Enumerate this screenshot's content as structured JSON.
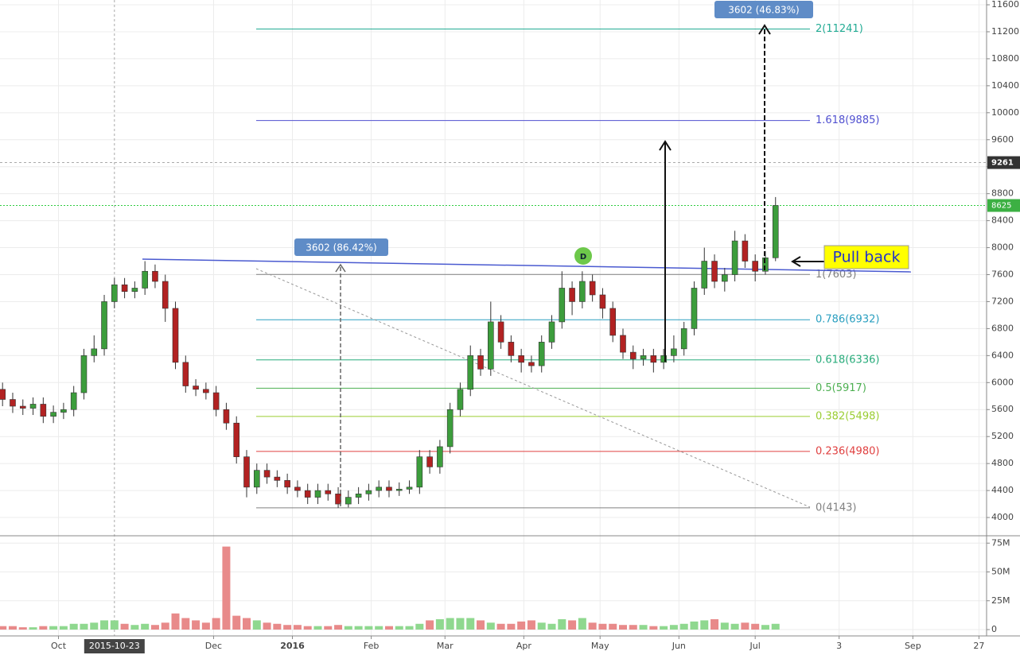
{
  "chart_data": {
    "type": "candlestick",
    "x": [
      -22,
      -18,
      -14,
      -10,
      -6,
      -2,
      2,
      6,
      10,
      14,
      18,
      22,
      26,
      30,
      34,
      38,
      42,
      46,
      50,
      54,
      58,
      62,
      66,
      70,
      74,
      78,
      82,
      86,
      90,
      94,
      98,
      102,
      106,
      110,
      114,
      118,
      122,
      126,
      130,
      134,
      138,
      142,
      146,
      150,
      154,
      158,
      162,
      166,
      170,
      174,
      178,
      182,
      186,
      190,
      194,
      198,
      202,
      206,
      210,
      214,
      218,
      222,
      226,
      230,
      234,
      238,
      242,
      246,
      250,
      254,
      258,
      262,
      266,
      270,
      274,
      278,
      282
    ],
    "open": [
      5900,
      5750,
      5650,
      5620,
      5680,
      5500,
      5560,
      5600,
      5850,
      6400,
      6500,
      7200,
      7450,
      7350,
      7400,
      7650,
      7500,
      7100,
      6300,
      5950,
      5900,
      5850,
      5600,
      5400,
      4900,
      4450,
      4700,
      4600,
      4550,
      4450,
      4400,
      4300,
      4400,
      4350,
      4200,
      4300,
      4350,
      4400,
      4450,
      4400,
      4420,
      4450,
      4900,
      4750,
      5050,
      5600,
      5900,
      6400,
      6200,
      6900,
      6600,
      6400,
      6300,
      6250,
      6600,
      6900,
      7400,
      7200,
      7500,
      7300,
      7100,
      6700,
      6450,
      6350,
      6400,
      6300,
      6400,
      6500,
      6800,
      7400,
      7800,
      7500,
      7600,
      8100,
      7800,
      7650,
      7850
    ],
    "high": [
      6000,
      5850,
      5750,
      5780,
      5780,
      5660,
      5700,
      5950,
      6500,
      6700,
      7300,
      7550,
      7550,
      7500,
      7800,
      7750,
      7600,
      7200,
      6400,
      6050,
      6000,
      5950,
      5700,
      5500,
      5000,
      4800,
      4800,
      4700,
      4650,
      4550,
      4500,
      4500,
      4500,
      4450,
      4400,
      4450,
      4500,
      4550,
      4550,
      4520,
      4550,
      5000,
      5000,
      5150,
      5700,
      6000,
      6550,
      6500,
      7200,
      7000,
      6700,
      6500,
      6400,
      6700,
      7000,
      7650,
      7500,
      7650,
      7600,
      7400,
      7200,
      6800,
      6550,
      6500,
      6500,
      6500,
      6700,
      6900,
      7500,
      8000,
      7900,
      7700,
      8250,
      8200,
      7900,
      7950,
      8750
    ],
    "low": [
      5650,
      5550,
      5520,
      5520,
      5400,
      5400,
      5460,
      5500,
      5750,
      6300,
      6400,
      7100,
      7250,
      7250,
      7300,
      7400,
      6900,
      6200,
      5850,
      5800,
      5750,
      5500,
      5300,
      4800,
      4300,
      4350,
      4500,
      4450,
      4350,
      4300,
      4200,
      4200,
      4250,
      4143,
      4150,
      4200,
      4250,
      4300,
      4300,
      4320,
      4350,
      4350,
      4650,
      4650,
      4950,
      5500,
      5800,
      6100,
      6100,
      6500,
      6300,
      6150,
      6150,
      6150,
      6500,
      6800,
      7000,
      7100,
      7200,
      6950,
      6600,
      6350,
      6200,
      6250,
      6150,
      6200,
      6300,
      6400,
      6700,
      7300,
      7400,
      7350,
      7500,
      7700,
      7500,
      7600,
      7800
    ],
    "close": [
      5750,
      5650,
      5620,
      5680,
      5500,
      5560,
      5600,
      5850,
      6400,
      6500,
      7200,
      7450,
      7350,
      7400,
      7650,
      7500,
      7100,
      6300,
      5950,
      5900,
      5850,
      5600,
      5400,
      4900,
      4450,
      4700,
      4600,
      4550,
      4450,
      4400,
      4300,
      4400,
      4350,
      4200,
      4300,
      4350,
      4400,
      4450,
      4400,
      4420,
      4450,
      4900,
      4750,
      5050,
      5600,
      5900,
      6400,
      6200,
      6900,
      6600,
      6400,
      6300,
      6250,
      6600,
      6900,
      7400,
      7200,
      7500,
      7300,
      7100,
      6700,
      6450,
      6350,
      6400,
      6300,
      6400,
      6500,
      6800,
      7400,
      7800,
      7500,
      7600,
      8100,
      7800,
      7650,
      7850,
      8625
    ],
    "volume": [
      3,
      3,
      2,
      2,
      3,
      3,
      3,
      5,
      5,
      6,
      8,
      8,
      5,
      4,
      5,
      4,
      6,
      14,
      10,
      8,
      6,
      10,
      72,
      12,
      10,
      8,
      6,
      5,
      4,
      4,
      3,
      3,
      3,
      4,
      3,
      3,
      3,
      3,
      3,
      3,
      3,
      5,
      8,
      9,
      10,
      10,
      10,
      8,
      6,
      5,
      5,
      7,
      8,
      6,
      5,
      9,
      8,
      10,
      6,
      5,
      5,
      4,
      4,
      4,
      3,
      3,
      4,
      5,
      7,
      8,
      9,
      6,
      5,
      6,
      5,
      4,
      5
    ],
    "up_color": "#3c9d3c",
    "down_color": "#b22222",
    "volume_up_color": "#8fd88f",
    "volume_down_color": "#e88a8a",
    "xlim": [
      -23,
      365
    ],
    "xticks": [
      {
        "value": 0,
        "label": "Oct"
      },
      {
        "value": 61,
        "label": "Dec"
      },
      {
        "value": 92,
        "label": "2016"
      },
      {
        "value": 123,
        "label": "Feb"
      },
      {
        "value": 152,
        "label": "Mar"
      },
      {
        "value": 183,
        "label": "Apr"
      },
      {
        "value": 213,
        "label": "May"
      },
      {
        "value": 244,
        "label": "Jun"
      },
      {
        "value": 274,
        "label": "Jul"
      },
      {
        "value": 307,
        "label": "3"
      },
      {
        "value": 336,
        "label": "Sep"
      },
      {
        "value": 362,
        "label": "27"
      }
    ],
    "ylim": [
      3753,
      11671
    ],
    "yticks": [
      4000,
      4400,
      4800,
      5200,
      5600,
      6000,
      6400,
      6800,
      7200,
      7600,
      8000,
      8400,
      8800,
      9200,
      9600,
      10000,
      10400,
      10800,
      11200,
      11600
    ],
    "volume_ylim": [
      -5.5,
      80
    ],
    "volume_yticks": [
      0,
      {
        "value": 25,
        "label": "25M"
      },
      {
        "value": 50,
        "label": "50M"
      },
      {
        "value": 75,
        "label": "75M"
      }
    ],
    "grid": true,
    "fib_levels": [
      {
        "label": "2(11241)",
        "value": 11241,
        "color": "#22ab94"
      },
      {
        "label": "1.618(9885)",
        "value": 9885,
        "color": "#5050d0"
      },
      {
        "label": "1(7603)",
        "value": 7603,
        "color": "#808080"
      },
      {
        "label": "0.786(6932)",
        "value": 6932,
        "color": "#2a9fc0"
      },
      {
        "label": "0.618(6336)",
        "value": 6336,
        "color": "#27ab7a"
      },
      {
        "label": "0.5(5917)",
        "value": 5917,
        "color": "#4caf50"
      },
      {
        "label": "0.382(5498)",
        "value": 5498,
        "color": "#9acd32"
      },
      {
        "label": "0.236(4980)",
        "value": 4980,
        "color": "#e04040"
      },
      {
        "label": "0(4143)",
        "value": 4143,
        "color": "#808080"
      }
    ],
    "crosshair_price": 9261,
    "crosshair_x": {
      "value": 22,
      "label": "2015-10-23"
    },
    "last_price": 8625,
    "annotations": {
      "measure_1": "3602 (86.42%)",
      "measure_2": "3602 (46.83%)",
      "note": "Pull back",
      "marker": "D"
    }
  }
}
